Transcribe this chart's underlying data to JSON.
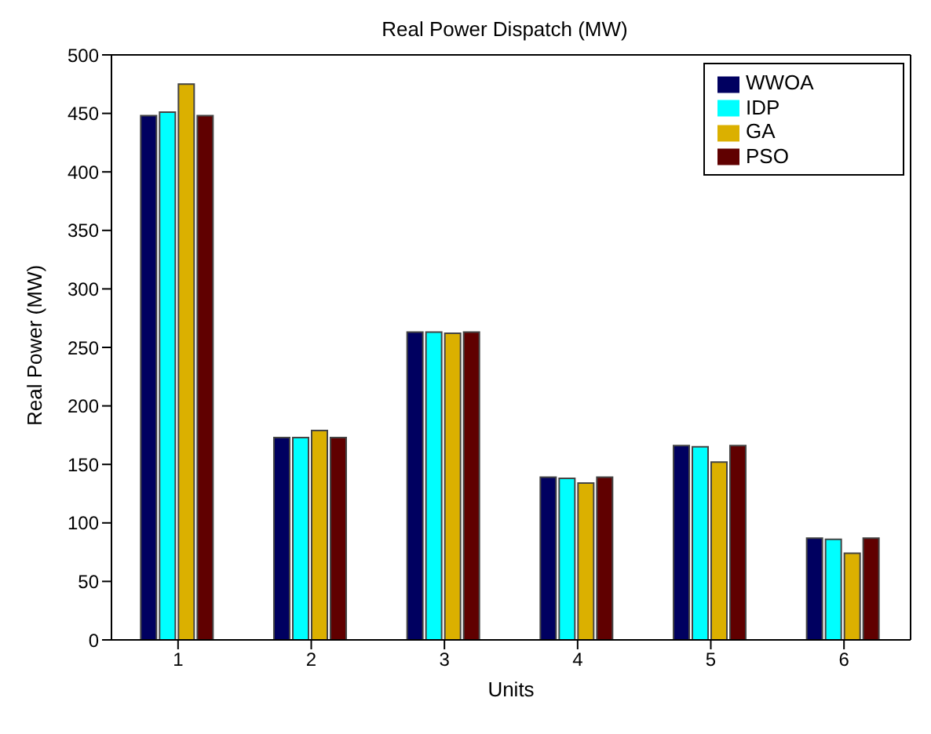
{
  "chart_data": {
    "type": "bar",
    "title": "Real Power Dispatch (MW)",
    "xlabel": "Units",
    "ylabel": "Real Power (MW)",
    "categories": [
      "1",
      "2",
      "3",
      "4",
      "5",
      "6"
    ],
    "series": [
      {
        "name": "WWOA",
        "color": "#000060",
        "values": [
          448,
          173,
          263,
          139,
          166,
          87
        ]
      },
      {
        "name": "IDP",
        "color": "#00ffff",
        "values": [
          451,
          173,
          263,
          138,
          165,
          86
        ]
      },
      {
        "name": "GA",
        "color": "#dbb000",
        "values": [
          475,
          179,
          262,
          134,
          152,
          74
        ]
      },
      {
        "name": "PSO",
        "color": "#600000",
        "values": [
          448,
          173,
          263,
          139,
          166,
          87
        ]
      }
    ],
    "ylim": [
      0,
      500
    ],
    "yticks": [
      0,
      50,
      100,
      150,
      200,
      250,
      300,
      350,
      400,
      450,
      500
    ],
    "grid": false,
    "legend": "top right"
  }
}
